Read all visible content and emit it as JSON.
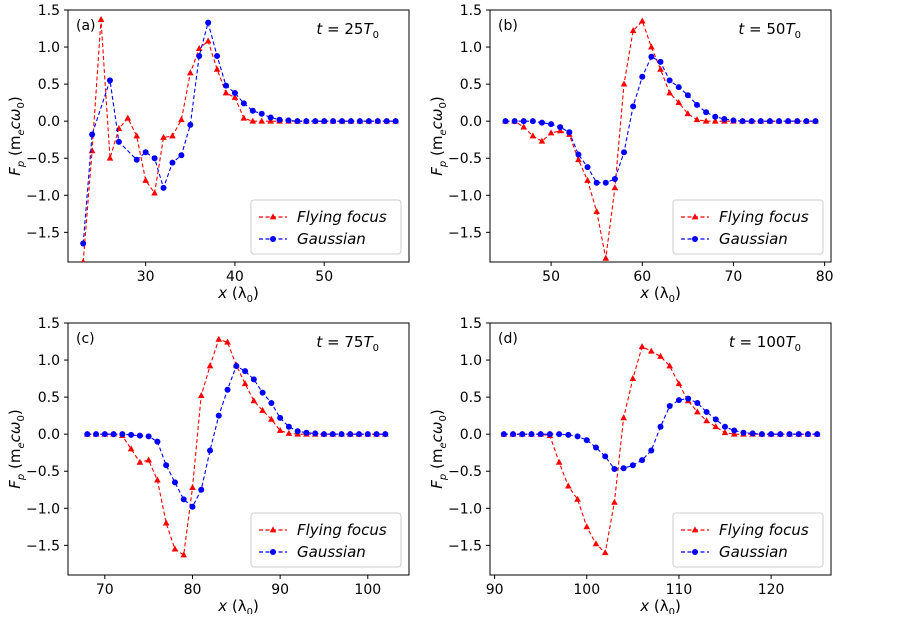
{
  "figure": {
    "ylabel_main": "F",
    "ylabel_sub": "p",
    "ylabel_unit_open": "(m",
    "ylabel_unit_sub": "e",
    "ylabel_unit_rest": "cω",
    "ylabel_unit_sub2": "0",
    "ylabel_unit_close": ")",
    "xlabel_main": "x",
    "xlabel_unit_open": "(λ",
    "xlabel_unit_sub": "0",
    "xlabel_unit_close": ")",
    "colors": {
      "flying": "#ff0000",
      "gaussian": "#0000ff"
    }
  },
  "chart_data": [
    {
      "type": "line",
      "panel": "(a)",
      "time_prefix": "t",
      "time_value": " = 25T",
      "time_sub": "0",
      "xlim": [
        21.3,
        59.5
      ],
      "ylim": [
        -1.9,
        1.5
      ],
      "xticks": [
        30,
        40,
        50
      ],
      "yticks": [
        1.5,
        1.0,
        0.5,
        0.0,
        -0.5,
        -1.0,
        -1.5
      ],
      "series": [
        {
          "name": "Flying focus",
          "marker": "triangle",
          "x": [
            23,
            24,
            25,
            26,
            27,
            28,
            29,
            30,
            31,
            32,
            33,
            34,
            35,
            36,
            37,
            38,
            39,
            40,
            41,
            42,
            43,
            44,
            45,
            46,
            47,
            48,
            49,
            50,
            51,
            52,
            53,
            54,
            55,
            56,
            57,
            58
          ],
          "y": [
            -1.9,
            -0.4,
            1.37,
            -0.5,
            -0.1,
            0.04,
            -0.2,
            -0.8,
            -0.97,
            -0.22,
            -0.2,
            0.02,
            0.65,
            0.98,
            1.08,
            0.7,
            0.38,
            0.32,
            0.04,
            0.0,
            0.0,
            0.0,
            0.0,
            0.0,
            0.0,
            0.0,
            0.0,
            0.0,
            0.0,
            0.0,
            0.0,
            0.0,
            0.0,
            0.0,
            0.0,
            0.0
          ]
        },
        {
          "name": "Gaussian",
          "marker": "circle",
          "x": [
            23,
            24,
            26,
            27,
            29,
            30,
            31,
            32,
            33,
            34,
            35,
            36,
            37,
            38,
            39,
            40,
            41,
            42,
            43,
            44,
            45,
            46,
            47,
            48,
            49,
            50,
            51,
            52,
            53,
            54,
            55,
            56,
            57,
            58
          ],
          "y": [
            -1.65,
            -0.18,
            0.55,
            -0.28,
            -0.52,
            -0.42,
            -0.5,
            -0.9,
            -0.56,
            -0.46,
            -0.05,
            0.88,
            1.33,
            0.88,
            0.48,
            0.38,
            0.24,
            0.14,
            0.1,
            0.05,
            0.02,
            0.01,
            0.0,
            0.0,
            0.0,
            0.0,
            0.0,
            0.0,
            0.0,
            0.0,
            0.0,
            0.0,
            0.0,
            0.0
          ]
        }
      ]
    },
    {
      "type": "line",
      "panel": "(b)",
      "time_prefix": "t",
      "time_value": " = 50T",
      "time_sub": "0",
      "xlim": [
        43.3,
        80.7
      ],
      "ylim": [
        -1.9,
        1.5
      ],
      "xticks": [
        50,
        60,
        70,
        80
      ],
      "yticks": [
        1.5,
        1.0,
        0.5,
        0.0,
        -0.5,
        -1.0,
        -1.5
      ],
      "series": [
        {
          "name": "Flying focus",
          "marker": "triangle",
          "x": [
            45,
            46,
            47,
            48,
            49,
            50,
            51,
            52,
            53,
            54,
            55,
            56,
            57,
            58,
            59,
            60,
            61,
            62,
            63,
            64,
            65,
            66,
            67,
            68,
            69,
            70,
            71,
            72,
            73,
            74,
            75,
            76,
            77,
            78,
            79
          ],
          "y": [
            0.0,
            0.0,
            -0.08,
            -0.2,
            -0.27,
            -0.16,
            -0.13,
            -0.18,
            -0.52,
            -0.8,
            -1.22,
            -1.85,
            -0.9,
            0.5,
            1.22,
            1.35,
            1.0,
            0.7,
            0.38,
            0.25,
            0.1,
            0.02,
            0.0,
            0.0,
            0.0,
            0.0,
            0.0,
            0.0,
            0.0,
            0.0,
            0.0,
            0.0,
            0.0,
            0.0,
            0.0
          ]
        },
        {
          "name": "Gaussian",
          "marker": "circle",
          "x": [
            45,
            46,
            47,
            48,
            49,
            50,
            51,
            52,
            53,
            54,
            55,
            56,
            57,
            58,
            59,
            60,
            61,
            62,
            63,
            64,
            65,
            66,
            67,
            68,
            69,
            70,
            71,
            72,
            73,
            74,
            75,
            76,
            77,
            78,
            79
          ],
          "y": [
            0.0,
            0.0,
            0.0,
            0.0,
            -0.02,
            -0.04,
            -0.08,
            -0.15,
            -0.45,
            -0.62,
            -0.83,
            -0.83,
            -0.78,
            -0.42,
            0.2,
            0.6,
            0.87,
            0.8,
            0.55,
            0.46,
            0.35,
            0.22,
            0.12,
            0.06,
            0.03,
            0.01,
            0.0,
            0.0,
            0.0,
            0.0,
            0.0,
            0.0,
            0.0,
            0.0,
            0.0
          ]
        }
      ]
    },
    {
      "type": "line",
      "panel": "(c)",
      "time_prefix": "t",
      "time_value": " = 75T",
      "time_sub": "0",
      "xlim": [
        65.8,
        104.7
      ],
      "ylim": [
        -1.9,
        1.5
      ],
      "xticks": [
        70,
        80,
        90,
        100
      ],
      "yticks": [
        1.5,
        1.0,
        0.5,
        0.0,
        -0.5,
        -1.0,
        -1.5
      ],
      "series": [
        {
          "name": "Flying focus",
          "marker": "triangle",
          "x": [
            68,
            69,
            70,
            71,
            72,
            73,
            74,
            75,
            76,
            77,
            78,
            79,
            80,
            81,
            82,
            83,
            84,
            85,
            86,
            87,
            88,
            89,
            90,
            91,
            92,
            93,
            94,
            95,
            96,
            97,
            98,
            99,
            100,
            101,
            102
          ],
          "y": [
            0.0,
            0.0,
            0.0,
            0.0,
            -0.02,
            -0.2,
            -0.38,
            -0.35,
            -0.62,
            -1.2,
            -1.55,
            -1.63,
            -0.72,
            0.52,
            0.92,
            1.28,
            1.24,
            0.93,
            0.68,
            0.45,
            0.32,
            0.2,
            0.05,
            0.01,
            0.0,
            0.0,
            0.0,
            0.0,
            0.0,
            0.0,
            0.0,
            0.0,
            0.0,
            0.0,
            0.0
          ]
        },
        {
          "name": "Gaussian",
          "marker": "circle",
          "x": [
            68,
            69,
            70,
            71,
            72,
            73,
            74,
            75,
            76,
            77,
            78,
            79,
            80,
            81,
            82,
            83,
            84,
            85,
            86,
            87,
            88,
            89,
            90,
            91,
            92,
            93,
            94,
            95,
            96,
            97,
            98,
            99,
            100,
            101,
            102
          ],
          "y": [
            0.0,
            0.0,
            0.0,
            0.0,
            0.0,
            -0.01,
            -0.02,
            -0.03,
            -0.1,
            -0.42,
            -0.65,
            -0.88,
            -0.98,
            -0.75,
            -0.22,
            0.25,
            0.6,
            0.92,
            0.85,
            0.74,
            0.56,
            0.42,
            0.22,
            0.1,
            0.04,
            0.02,
            0.01,
            0.0,
            0.0,
            0.0,
            0.0,
            0.0,
            0.0,
            0.0,
            0.0
          ]
        }
      ]
    },
    {
      "type": "line",
      "panel": "(d)",
      "time_prefix": "t",
      "time_value": " = 100T",
      "time_sub": "0",
      "xlim": [
        89.5,
        126.5
      ],
      "ylim": [
        -1.9,
        1.5
      ],
      "xticks": [
        90,
        100,
        110,
        120
      ],
      "yticks": [
        1.5,
        1.0,
        0.5,
        0.0,
        -0.5,
        -1.0,
        -1.5
      ],
      "series": [
        {
          "name": "Flying focus",
          "marker": "triangle",
          "x": [
            91,
            92,
            93,
            94,
            95,
            96,
            97,
            98,
            99,
            100,
            101,
            102,
            103,
            104,
            105,
            106,
            107,
            108,
            109,
            110,
            111,
            112,
            113,
            114,
            115,
            116,
            117,
            118,
            119,
            120,
            121,
            122,
            123,
            124,
            125
          ],
          "y": [
            0.0,
            0.0,
            0.0,
            0.0,
            0.0,
            -0.02,
            -0.38,
            -0.7,
            -0.88,
            -1.25,
            -1.48,
            -1.6,
            -0.92,
            0.22,
            0.75,
            1.18,
            1.12,
            1.05,
            0.92,
            0.68,
            0.45,
            0.3,
            0.18,
            0.1,
            0.02,
            0.0,
            0.0,
            0.0,
            0.0,
            0.0,
            0.0,
            0.0,
            0.0,
            0.0,
            0.0
          ]
        },
        {
          "name": "Gaussian",
          "marker": "circle",
          "x": [
            91,
            92,
            93,
            94,
            95,
            96,
            97,
            98,
            99,
            100,
            101,
            102,
            103,
            104,
            105,
            106,
            107,
            108,
            109,
            110,
            111,
            112,
            113,
            114,
            115,
            116,
            117,
            118,
            119,
            120,
            121,
            122,
            123,
            124,
            125
          ],
          "y": [
            0.0,
            0.0,
            0.0,
            0.0,
            0.0,
            0.0,
            0.0,
            -0.01,
            -0.03,
            -0.08,
            -0.18,
            -0.3,
            -0.47,
            -0.46,
            -0.42,
            -0.35,
            -0.22,
            0.1,
            0.38,
            0.46,
            0.48,
            0.42,
            0.3,
            0.2,
            0.1,
            0.05,
            0.02,
            0.01,
            0.0,
            0.0,
            0.0,
            0.0,
            0.0,
            0.0,
            0.0
          ]
        }
      ]
    }
  ]
}
